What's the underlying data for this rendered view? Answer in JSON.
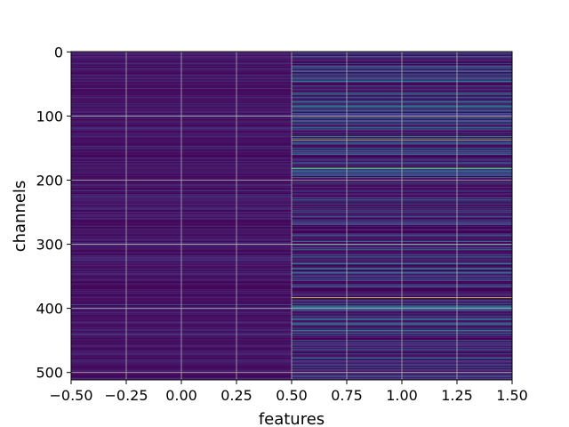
{
  "chart_data": {
    "type": "heatmap",
    "title": "",
    "xlabel": "features",
    "ylabel": "channels",
    "columns": [
      0,
      1
    ],
    "n_rows": 512,
    "xlim": [
      -0.5,
      1.5
    ],
    "ylim": [
      511.5,
      -0.5
    ],
    "y_inverted": true,
    "grid": true,
    "colormap": "viridis",
    "x_ticks": [
      -0.5,
      -0.25,
      0.0,
      0.25,
      0.5,
      0.75,
      1.0,
      1.25,
      1.5
    ],
    "x_tick_labels": [
      "−0.50",
      "−0.25",
      "0.00",
      "0.25",
      "0.50",
      "0.75",
      "1.00",
      "1.25",
      "1.50"
    ],
    "y_ticks": [
      0,
      100,
      200,
      300,
      400,
      500
    ],
    "y_tick_labels": [
      "0",
      "100",
      "200",
      "300",
      "400",
      "500"
    ],
    "column_0_value_range": [
      0.02,
      0.2
    ],
    "column_1_value_range": [
      0.0,
      1.0
    ],
    "column_1_highlight_rows": [
      {
        "row": 30,
        "value": 0.55
      },
      {
        "row": 64,
        "value": 0.68
      },
      {
        "row": 132,
        "value": 0.75
      },
      {
        "row": 137,
        "value": 0.92
      },
      {
        "row": 182,
        "value": 0.88
      },
      {
        "row": 196,
        "value": 0.6
      },
      {
        "row": 330,
        "value": 0.6
      },
      {
        "row": 383,
        "value": 0.98
      },
      {
        "row": 423,
        "value": 0.55
      }
    ],
    "column_0_highlight_rows": [
      {
        "row": 100,
        "value": 0.35
      },
      {
        "row": 394,
        "value": 0.4
      }
    ]
  }
}
